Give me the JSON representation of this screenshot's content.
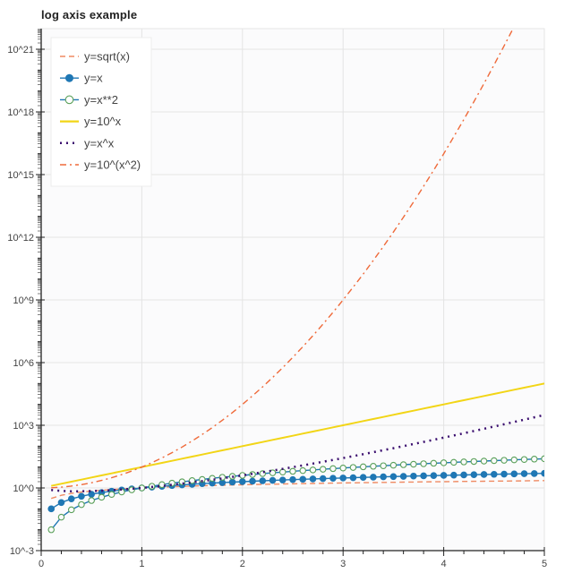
{
  "chart_data": {
    "type": "line",
    "title": "log axis example",
    "xlabel": "",
    "ylabel": "",
    "xlim": [
      0,
      5
    ],
    "ylim_log10": [
      -3,
      22
    ],
    "y_scale": "log",
    "grid": true,
    "legend_position": "top-left",
    "x_ticks": [
      "0",
      "1",
      "2",
      "3",
      "4",
      "5"
    ],
    "x_tick_values": [
      0,
      1,
      2,
      3,
      4,
      5
    ],
    "y_ticks": [
      "10^-3",
      "10^0",
      "10^3",
      "10^6",
      "10^9",
      "10^12",
      "10^15",
      "10^18",
      "10^21"
    ],
    "y_tick_exponents": [
      -3,
      0,
      3,
      6,
      9,
      12,
      15,
      18,
      21
    ],
    "x_range": {
      "start": 0.1,
      "end": 5.0,
      "step": 0.1
    },
    "series": [
      {
        "name": "y=sqrt(x)",
        "formula": "sqrt",
        "style": "dashed",
        "color": "#ef8a62",
        "marker": "none"
      },
      {
        "name": "y=x",
        "formula": "x",
        "style": "solid",
        "color": "#1f77b4",
        "marker": "filled-circle"
      },
      {
        "name": "y=x**2",
        "formula": "x2",
        "style": "solid",
        "color": "#1f77b4",
        "marker": "open-circle",
        "marker_color": "#5aa05a"
      },
      {
        "name": "y=10^x",
        "formula": "tenx",
        "style": "solid",
        "color": "#f2d516",
        "marker": "none"
      },
      {
        "name": "y=x^x",
        "formula": "xx",
        "style": "dotted",
        "color": "#3b0f6f",
        "marker": "none"
      },
      {
        "name": "y=10^(x^2)",
        "formula": "tenx2",
        "style": "dotdash",
        "color": "#ef6a3a",
        "marker": "none"
      }
    ]
  }
}
